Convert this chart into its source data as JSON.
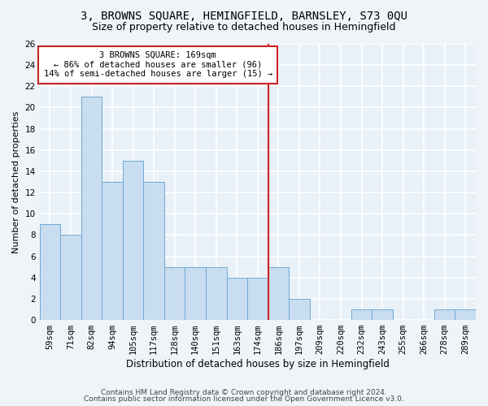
{
  "title1": "3, BROWNS SQUARE, HEMINGFIELD, BARNSLEY, S73 0QU",
  "title2": "Size of property relative to detached houses in Hemingfield",
  "xlabel": "Distribution of detached houses by size in Hemingfield",
  "ylabel": "Number of detached properties",
  "categories": [
    "59sqm",
    "71sqm",
    "82sqm",
    "94sqm",
    "105sqm",
    "117sqm",
    "128sqm",
    "140sqm",
    "151sqm",
    "163sqm",
    "174sqm",
    "186sqm",
    "197sqm",
    "209sqm",
    "220sqm",
    "232sqm",
    "243sqm",
    "255sqm",
    "266sqm",
    "278sqm",
    "289sqm"
  ],
  "values": [
    9,
    8,
    21,
    13,
    15,
    13,
    5,
    5,
    5,
    4,
    4,
    5,
    2,
    0,
    0,
    1,
    1,
    0,
    0,
    1,
    1
  ],
  "bar_color": "#c9ddf0",
  "bar_edge_color": "#6aaad4",
  "vline_x": 10.5,
  "annotation_text": "3 BROWNS SQUARE: 169sqm\n← 86% of detached houses are smaller (96)\n14% of semi-detached houses are larger (15) →",
  "annotation_box_facecolor": "#ffffff",
  "annotation_box_edgecolor": "#cc2222",
  "vline_color": "#cc2222",
  "ylim": [
    0,
    26
  ],
  "yticks": [
    0,
    2,
    4,
    6,
    8,
    10,
    12,
    14,
    16,
    18,
    20,
    22,
    24,
    26
  ],
  "footer1": "Contains HM Land Registry data © Crown copyright and database right 2024.",
  "footer2": "Contains public sector information licensed under the Open Government Licence v3.0.",
  "fig_facecolor": "#f0f4f8",
  "plot_facecolor": "#e8f0f8",
  "grid_color": "#ffffff",
  "title1_fontsize": 10,
  "title2_fontsize": 9,
  "xlabel_fontsize": 8.5,
  "ylabel_fontsize": 8,
  "tick_fontsize": 7.5,
  "footer_fontsize": 6.5,
  "annot_fontsize": 7.5
}
